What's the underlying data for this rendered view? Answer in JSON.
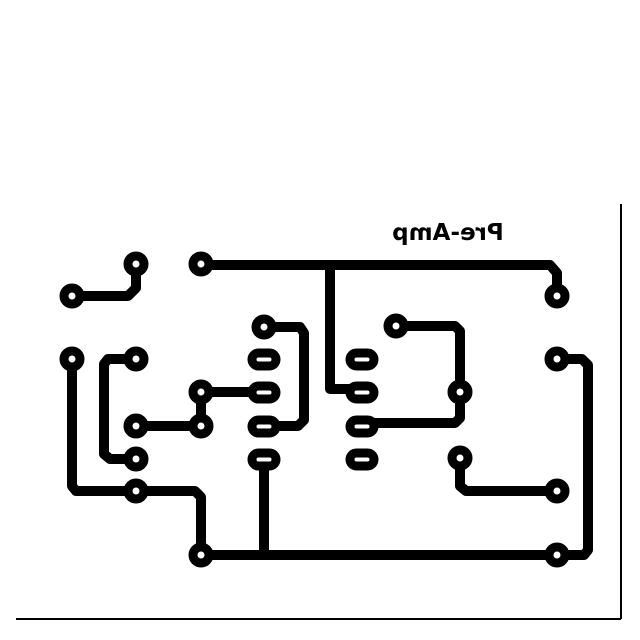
{
  "board": {
    "label": "Pre-Amp",
    "label_rendering": "mirrored",
    "colors": {
      "copper": "#000000",
      "background": "#ffffff"
    }
  }
}
